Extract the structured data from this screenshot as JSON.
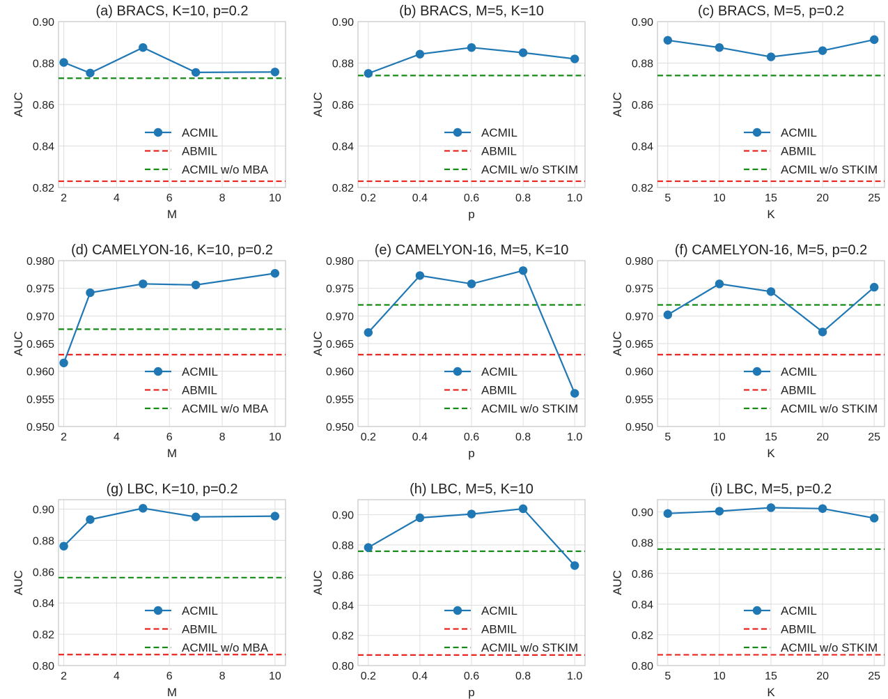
{
  "colors": {
    "acmil": "#1f77b4",
    "abmil": "#e8261f",
    "variant": "#158a15",
    "grid": "#dedede"
  },
  "chart_data": [
    {
      "type": "line",
      "title": "(a) BRACS, K=10, p=0.2",
      "xlabel": "M",
      "ylabel": "AUC",
      "xlim": [
        1.8,
        10.4
      ],
      "ylim": [
        0.82,
        0.9
      ],
      "xticks": [
        2,
        4,
        6,
        8,
        10
      ],
      "xtick_labels": [
        "2",
        "4",
        "6",
        "8",
        "10"
      ],
      "yticks": [
        0.82,
        0.84,
        0.86,
        0.88,
        0.9
      ],
      "ytick_labels": [
        "0.82",
        "0.84",
        "0.86",
        "0.88",
        "0.90"
      ],
      "series": [
        {
          "name": "ACMIL",
          "x": [
            2,
            3,
            5,
            7,
            10
          ],
          "y": [
            0.8803,
            0.8752,
            0.8875,
            0.8755,
            0.8757
          ]
        }
      ],
      "baselines": [
        {
          "name": "ABMIL",
          "y": 0.823,
          "color_key": "abmil"
        },
        {
          "name": "ACMIL w/o MBA",
          "y": 0.8727,
          "color_key": "variant"
        }
      ],
      "legend": "center-bottom",
      "grid": true
    },
    {
      "type": "line",
      "title": "(b) BRACS, M=5, K=10",
      "xlabel": "p",
      "ylabel": "AUC",
      "xlim": [
        0.16,
        1.04
      ],
      "ylim": [
        0.82,
        0.9
      ],
      "xticks": [
        0.2,
        0.4,
        0.6,
        0.8,
        1.0
      ],
      "xtick_labels": [
        "0.2",
        "0.4",
        "0.6",
        "0.8",
        "1.0"
      ],
      "yticks": [
        0.82,
        0.84,
        0.86,
        0.88,
        0.9
      ],
      "ytick_labels": [
        "0.82",
        "0.84",
        "0.86",
        "0.88",
        "0.90"
      ],
      "series": [
        {
          "name": "ACMIL",
          "x": [
            0.2,
            0.4,
            0.6,
            0.8,
            1.0
          ],
          "y": [
            0.875,
            0.8843,
            0.8875,
            0.885,
            0.882
          ]
        }
      ],
      "baselines": [
        {
          "name": "ABMIL",
          "y": 0.823,
          "color_key": "abmil"
        },
        {
          "name": "ACMIL w/o STKIM",
          "y": 0.874,
          "color_key": "variant"
        }
      ],
      "legend": "center-bottom",
      "grid": true
    },
    {
      "type": "line",
      "title": "(c) BRACS, M=5, p=0.2",
      "xlabel": "K",
      "ylabel": "AUC",
      "xlim": [
        4,
        26
      ],
      "ylim": [
        0.82,
        0.9
      ],
      "xticks": [
        5,
        10,
        15,
        20,
        25
      ],
      "xtick_labels": [
        "5",
        "10",
        "15",
        "20",
        "25"
      ],
      "yticks": [
        0.82,
        0.84,
        0.86,
        0.88,
        0.9
      ],
      "ytick_labels": [
        "0.82",
        "0.84",
        "0.86",
        "0.88",
        "0.90"
      ],
      "series": [
        {
          "name": "ACMIL",
          "x": [
            5,
            10,
            15,
            20,
            25
          ],
          "y": [
            0.891,
            0.8875,
            0.883,
            0.886,
            0.8913
          ]
        }
      ],
      "baselines": [
        {
          "name": "ABMIL",
          "y": 0.823,
          "color_key": "abmil"
        },
        {
          "name": "ACMIL w/o STKIM",
          "y": 0.874,
          "color_key": "variant"
        }
      ],
      "legend": "center-bottom",
      "grid": true
    },
    {
      "type": "line",
      "title": "(d) CAMELYON-16, K=10, p=0.2",
      "xlabel": "M",
      "ylabel": "AUC",
      "xlim": [
        1.8,
        10.4
      ],
      "ylim": [
        0.95,
        0.98
      ],
      "xticks": [
        2,
        4,
        6,
        8,
        10
      ],
      "xtick_labels": [
        "2",
        "4",
        "6",
        "8",
        "10"
      ],
      "yticks": [
        0.95,
        0.955,
        0.96,
        0.965,
        0.97,
        0.975,
        0.98
      ],
      "ytick_labels": [
        "0.950",
        "0.955",
        "0.960",
        "0.965",
        "0.970",
        "0.975",
        "0.980"
      ],
      "series": [
        {
          "name": "ACMIL",
          "x": [
            2,
            3,
            5,
            7,
            10
          ],
          "y": [
            0.9615,
            0.9742,
            0.9758,
            0.9756,
            0.9777
          ]
        }
      ],
      "baselines": [
        {
          "name": "ABMIL",
          "y": 0.963,
          "color_key": "abmil"
        },
        {
          "name": "ACMIL w/o MBA",
          "y": 0.9676,
          "color_key": "variant"
        }
      ],
      "legend": "center-bottom",
      "grid": true
    },
    {
      "type": "line",
      "title": "(e) CAMELYON-16, M=5, K=10",
      "xlabel": "p",
      "ylabel": "AUC",
      "xlim": [
        0.16,
        1.04
      ],
      "ylim": [
        0.95,
        0.98
      ],
      "xticks": [
        0.2,
        0.4,
        0.6,
        0.8,
        1.0
      ],
      "xtick_labels": [
        "0.2",
        "0.4",
        "0.6",
        "0.8",
        "1.0"
      ],
      "yticks": [
        0.95,
        0.955,
        0.96,
        0.965,
        0.97,
        0.975,
        0.98
      ],
      "ytick_labels": [
        "0.950",
        "0.955",
        "0.960",
        "0.965",
        "0.970",
        "0.975",
        "0.980"
      ],
      "series": [
        {
          "name": "ACMIL",
          "x": [
            0.2,
            0.4,
            0.6,
            0.8,
            1.0
          ],
          "y": [
            0.967,
            0.9773,
            0.9758,
            0.9782,
            0.956
          ]
        }
      ],
      "baselines": [
        {
          "name": "ABMIL",
          "y": 0.963,
          "color_key": "abmil"
        },
        {
          "name": "ACMIL w/o STKIM",
          "y": 0.972,
          "color_key": "variant"
        }
      ],
      "legend": "center-bottom",
      "grid": true
    },
    {
      "type": "line",
      "title": "(f) CAMELYON-16, M=5, p=0.2",
      "xlabel": "K",
      "ylabel": "AUC",
      "xlim": [
        4,
        26
      ],
      "ylim": [
        0.95,
        0.98
      ],
      "xticks": [
        5,
        10,
        15,
        20,
        25
      ],
      "xtick_labels": [
        "5",
        "10",
        "15",
        "20",
        "25"
      ],
      "yticks": [
        0.95,
        0.955,
        0.96,
        0.965,
        0.97,
        0.975,
        0.98
      ],
      "ytick_labels": [
        "0.950",
        "0.955",
        "0.960",
        "0.965",
        "0.970",
        "0.975",
        "0.980"
      ],
      "series": [
        {
          "name": "ACMIL",
          "x": [
            5,
            10,
            15,
            20,
            25
          ],
          "y": [
            0.9702,
            0.9758,
            0.9744,
            0.9671,
            0.9752
          ]
        }
      ],
      "baselines": [
        {
          "name": "ABMIL",
          "y": 0.963,
          "color_key": "abmil"
        },
        {
          "name": "ACMIL w/o STKIM",
          "y": 0.972,
          "color_key": "variant"
        }
      ],
      "legend": "center-bottom",
      "grid": true
    },
    {
      "type": "line",
      "title": "(g) LBC, K=10, p=0.2",
      "xlabel": "M",
      "ylabel": "AUC",
      "xlim": [
        1.8,
        10.4
      ],
      "ylim": [
        0.8,
        0.906
      ],
      "xticks": [
        2,
        4,
        6,
        8,
        10
      ],
      "xtick_labels": [
        "2",
        "4",
        "6",
        "8",
        "10"
      ],
      "yticks": [
        0.8,
        0.82,
        0.84,
        0.86,
        0.88,
        0.9
      ],
      "ytick_labels": [
        "0.80",
        "0.82",
        "0.84",
        "0.86",
        "0.88",
        "0.90"
      ],
      "series": [
        {
          "name": "ACMIL",
          "x": [
            2,
            3,
            5,
            7,
            10
          ],
          "y": [
            0.8763,
            0.8933,
            0.9005,
            0.895,
            0.8955
          ]
        }
      ],
      "baselines": [
        {
          "name": "ABMIL",
          "y": 0.807,
          "color_key": "abmil"
        },
        {
          "name": "ACMIL w/o MBA",
          "y": 0.8562,
          "color_key": "variant"
        }
      ],
      "legend": "center-bottom",
      "grid": true
    },
    {
      "type": "line",
      "title": "(h) LBC, M=5, K=10",
      "xlabel": "p",
      "ylabel": "AUC",
      "xlim": [
        0.16,
        1.04
      ],
      "ylim": [
        0.8,
        0.91
      ],
      "xticks": [
        0.2,
        0.4,
        0.6,
        0.8,
        1.0
      ],
      "xtick_labels": [
        "0.2",
        "0.4",
        "0.6",
        "0.8",
        "1.0"
      ],
      "yticks": [
        0.8,
        0.82,
        0.84,
        0.86,
        0.88,
        0.9
      ],
      "ytick_labels": [
        "0.80",
        "0.82",
        "0.84",
        "0.86",
        "0.88",
        "0.90"
      ],
      "series": [
        {
          "name": "ACMIL",
          "x": [
            0.2,
            0.4,
            0.6,
            0.8,
            1.0
          ],
          "y": [
            0.8783,
            0.898,
            0.9005,
            0.904,
            0.8663
          ]
        }
      ],
      "baselines": [
        {
          "name": "ABMIL",
          "y": 0.807,
          "color_key": "abmil"
        },
        {
          "name": "ACMIL w/o STKIM",
          "y": 0.8758,
          "color_key": "variant"
        }
      ],
      "legend": "center-bottom",
      "grid": true
    },
    {
      "type": "line",
      "title": "(i) LBC, M=5, p=0.2",
      "xlabel": "K",
      "ylabel": "AUC",
      "xlim": [
        4,
        26
      ],
      "ylim": [
        0.8,
        0.908
      ],
      "xticks": [
        5,
        10,
        15,
        20,
        25
      ],
      "xtick_labels": [
        "5",
        "10",
        "15",
        "20",
        "25"
      ],
      "yticks": [
        0.8,
        0.82,
        0.84,
        0.86,
        0.88,
        0.9
      ],
      "ytick_labels": [
        "0.80",
        "0.82",
        "0.84",
        "0.86",
        "0.88",
        "0.90"
      ],
      "series": [
        {
          "name": "ACMIL",
          "x": [
            5,
            10,
            15,
            20,
            25
          ],
          "y": [
            0.899,
            0.9005,
            0.9028,
            0.9022,
            0.896
          ]
        }
      ],
      "baselines": [
        {
          "name": "ABMIL",
          "y": 0.807,
          "color_key": "abmil"
        },
        {
          "name": "ACMIL w/o STKIM",
          "y": 0.8758,
          "color_key": "variant"
        }
      ],
      "legend": "center-bottom",
      "grid": true
    }
  ]
}
